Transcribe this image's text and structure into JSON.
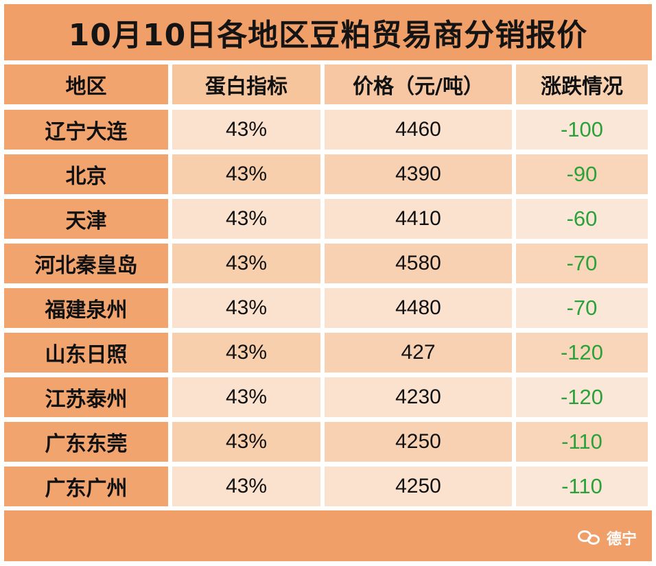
{
  "title": "10月10日各地区豆粕贸易商分销报价",
  "headers": [
    "地区",
    "蛋白指标",
    "价格（元/吨）",
    "涨跌情况"
  ],
  "rows": [
    {
      "region": "辽宁大连",
      "protein": "43%",
      "price": "4460",
      "change": "-100"
    },
    {
      "region": "北京",
      "protein": "43%",
      "price": "4390",
      "change": "-90"
    },
    {
      "region": "天津",
      "protein": "43%",
      "price": "4410",
      "change": "-60"
    },
    {
      "region": "河北秦皇岛",
      "protein": "43%",
      "price": "4580",
      "change": "-70"
    },
    {
      "region": "福建泉州",
      "protein": "43%",
      "price": "4480",
      "change": "-70"
    },
    {
      "region": "山东日照",
      "protein": "43%",
      "price": "427",
      "change": "-120"
    },
    {
      "region": "江苏泰州",
      "protein": "43%",
      "price": "4230",
      "change": "-120"
    },
    {
      "region": "广东东莞",
      "protein": "43%",
      "price": "4250",
      "change": "-110"
    },
    {
      "region": "广东广州",
      "protein": "43%",
      "price": "4250",
      "change": "-110"
    }
  ],
  "watermark": {
    "text": "德宁",
    "icon": "wechat-icon"
  },
  "colors": {
    "title_background": "#f09f69",
    "region_column": "#f2a46f",
    "light_cell": "#fbe2cf",
    "medium_cell": "#f8cfad",
    "negative_change": "#2aa13a"
  }
}
